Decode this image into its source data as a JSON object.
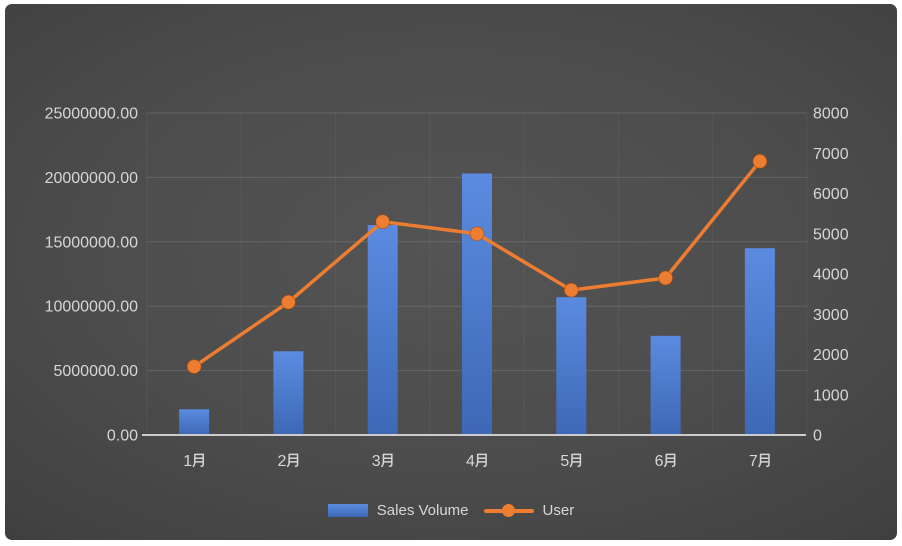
{
  "chart_data": {
    "type": "combo-bar-line",
    "title": "",
    "categories": [
      "1月",
      "2月",
      "3月",
      "4月",
      "5月",
      "6月",
      "7月"
    ],
    "series": [
      {
        "name": "Sales Volume",
        "type": "bar",
        "axis": "left",
        "color": "#4472c4",
        "gradient": [
          "#5b8be0",
          "#3e68b6"
        ],
        "values": [
          2000000,
          6500000,
          16300000,
          20300000,
          10700000,
          7700000,
          14500000
        ]
      },
      {
        "name": "User",
        "type": "line",
        "axis": "right",
        "color": "#ed7d31",
        "marker": "circle",
        "values": [
          1700,
          3300,
          5300,
          5000,
          3600,
          3900,
          6800
        ]
      }
    ],
    "left_axis": {
      "min": 0,
      "max": 25000000,
      "step": 5000000,
      "tick_labels": [
        "0.00",
        "5000000.00",
        "10000000.00",
        "15000000.00",
        "20000000.00",
        "25000000.00"
      ]
    },
    "right_axis": {
      "min": 0,
      "max": 8000,
      "step": 1000,
      "tick_labels": [
        "0",
        "1000",
        "2000",
        "3000",
        "4000",
        "5000",
        "6000",
        "7000",
        "8000"
      ]
    },
    "grid": "horizontal-major-faint-vertical",
    "legend_position": "bottom-center",
    "colors": {
      "panel_background_center": "#515151",
      "panel_background_corner": "#262626",
      "page_background": "#ffffff",
      "axis_line": "#cccccc",
      "text": "#d6d6d6",
      "gridline": "rgba(255,255,255,0.13)"
    }
  }
}
